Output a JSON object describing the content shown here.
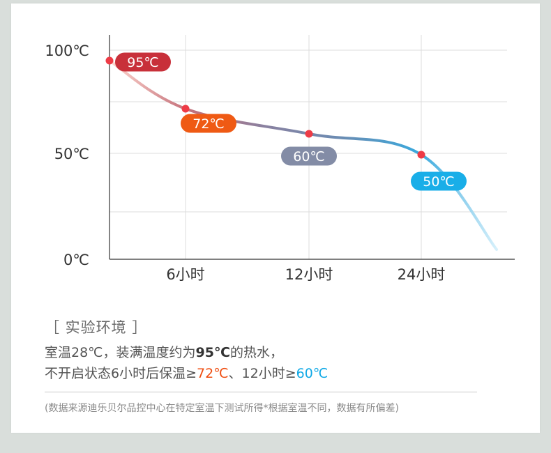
{
  "chart_data": {
    "type": "line",
    "x": [
      "0",
      "6小时",
      "12小时",
      "24小时"
    ],
    "categories": [
      "6小时",
      "12小时",
      "24小时"
    ],
    "y_ticks": [
      "100℃",
      "50℃",
      "0℃"
    ],
    "ylim": [
      0,
      100
    ],
    "grid": true,
    "points": [
      {
        "x": "0",
        "value": 95,
        "label": "95℃",
        "color": "#c8303a"
      },
      {
        "x": "6小时",
        "value": 72,
        "label": "72℃",
        "color": "#ef5a14"
      },
      {
        "x": "12小时",
        "value": 60,
        "label": "60℃",
        "color": "#838ca6"
      },
      {
        "x": "24小时",
        "value": 50,
        "label": "50℃",
        "color": "#19aee8"
      }
    ],
    "curve_colors": [
      "#ffd8d0",
      "#c4707a",
      "#8a81a0",
      "#6a8cb3",
      "#3aa9dd",
      "#d6f0fb"
    ],
    "point_color": "#ee3b46"
  },
  "env": {
    "title": "［ 实验环境 ］",
    "line1_a": "室温28℃，装满温度约为",
    "line1_bold": "95℃",
    "line1_b": "的热水，",
    "line2_a": "不开启状态6小时后保温≥",
    "line2_hl1": "72℃",
    "line2_sep": "、12小时≥",
    "line2_hl2": "60℃"
  },
  "note": "(数据来源迪乐贝尔品控中心在特定室温下测试所得*根据室温不同，数据有所偏差)"
}
